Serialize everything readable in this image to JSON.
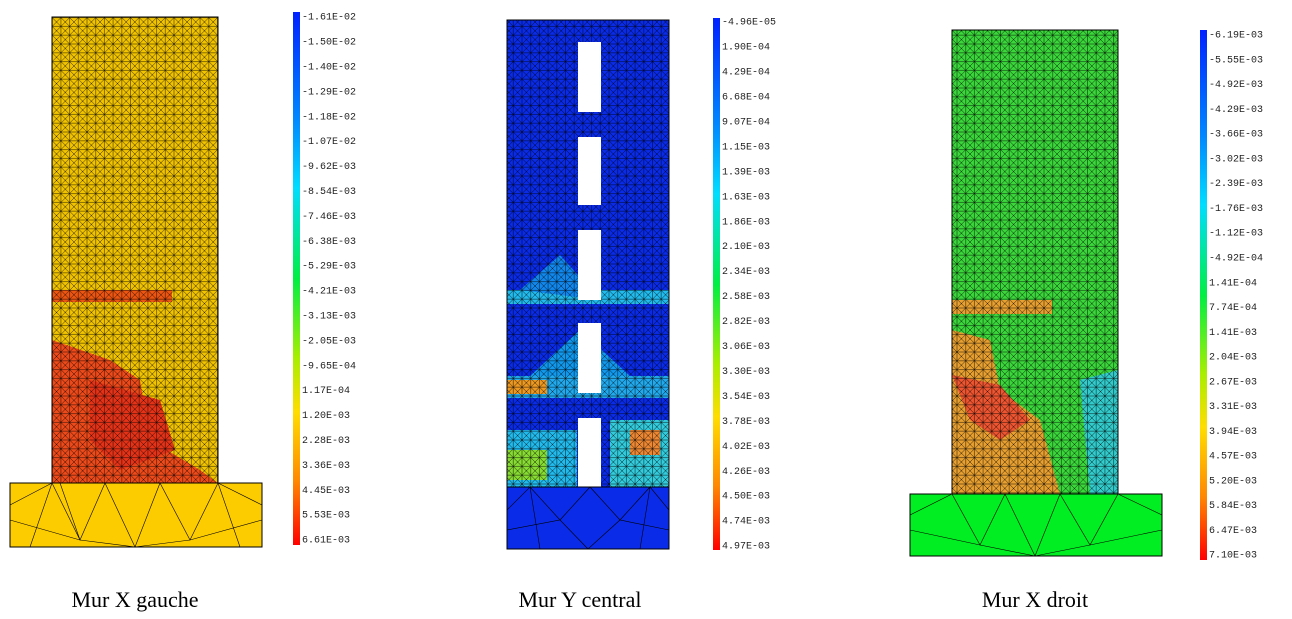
{
  "panels": [
    {
      "caption": "Mur X gauche",
      "legend": [
        "-1.61E-02",
        "-1.50E-02",
        "-1.40E-02",
        "-1.29E-02",
        "-1.18E-02",
        "-1.07E-02",
        "-9.62E-03",
        "-8.54E-03",
        "-7.46E-03",
        "-6.38E-03",
        "-5.29E-03",
        "-4.21E-03",
        "-3.13E-03",
        "-2.05E-03",
        "-9.65E-04",
        "1.17E-04",
        "1.20E-03",
        "2.28E-03",
        "3.36E-03",
        "4.45E-03",
        "5.53E-03",
        "6.61E-03"
      ]
    },
    {
      "caption": "Mur Y central",
      "legend": [
        "-4.96E-05",
        "1.90E-04",
        "4.29E-04",
        "6.68E-04",
        "9.07E-04",
        "1.15E-03",
        "1.39E-03",
        "1.63E-03",
        "1.86E-03",
        "2.10E-03",
        "2.34E-03",
        "2.58E-03",
        "2.82E-03",
        "3.06E-03",
        "3.30E-03",
        "3.54E-03",
        "3.78E-03",
        "4.02E-03",
        "4.26E-03",
        "4.50E-03",
        "4.74E-03",
        "4.97E-03"
      ]
    },
    {
      "caption": "Mur X droit",
      "legend": [
        "-6.19E-03",
        "-5.55E-03",
        "-4.92E-03",
        "-4.29E-03",
        "-3.66E-03",
        "-3.02E-03",
        "-2.39E-03",
        "-1.76E-03",
        "-1.12E-03",
        "-4.92E-04",
        "1.41E-04",
        "7.74E-04",
        "1.41E-03",
        "2.04E-03",
        "2.67E-03",
        "3.31E-03",
        "3.94E-03",
        "4.57E-03",
        "5.20E-03",
        "5.84E-03",
        "6.47E-03",
        "7.10E-03"
      ]
    }
  ]
}
